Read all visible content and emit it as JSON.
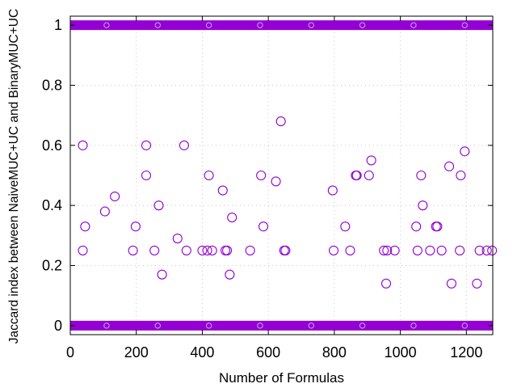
{
  "chart_data": {
    "type": "scatter",
    "title": "",
    "xlabel": "Number of Formulas",
    "ylabel": "Jaccard index between NaiveMUC+UC and BinaryMUC+UC",
    "xlim": [
      0,
      1280
    ],
    "ylim": [
      -0.03,
      1.03
    ],
    "x_ticks": [
      0,
      200,
      400,
      600,
      800,
      1000,
      1200
    ],
    "y_ticks": [
      0,
      0.2,
      0.4,
      0.6,
      0.8,
      1
    ],
    "x_tick_labels": [
      "0",
      "200",
      "400",
      "600",
      "800",
      "1000",
      "1200"
    ],
    "y_tick_labels": [
      "0",
      "0.2",
      "0.4",
      "0.6",
      "0.8",
      "1"
    ],
    "grid": true,
    "marker": "open-circle",
    "marker_color": "#9400d3",
    "dense_band_values": [
      0,
      1
    ],
    "dense_band_x_range": [
      0,
      1280
    ],
    "points": [
      {
        "x": 38,
        "y": 0.6
      },
      {
        "x": 38,
        "y": 0.25
      },
      {
        "x": 45,
        "y": 0.33
      },
      {
        "x": 105,
        "y": 0.38
      },
      {
        "x": 135,
        "y": 0.43
      },
      {
        "x": 190,
        "y": 0.25
      },
      {
        "x": 198,
        "y": 0.33
      },
      {
        "x": 230,
        "y": 0.6
      },
      {
        "x": 230,
        "y": 0.5
      },
      {
        "x": 255,
        "y": 0.25
      },
      {
        "x": 268,
        "y": 0.4
      },
      {
        "x": 278,
        "y": 0.17
      },
      {
        "x": 325,
        "y": 0.29
      },
      {
        "x": 345,
        "y": 0.6
      },
      {
        "x": 352,
        "y": 0.25
      },
      {
        "x": 400,
        "y": 0.25
      },
      {
        "x": 415,
        "y": 0.25
      },
      {
        "x": 420,
        "y": 0.5
      },
      {
        "x": 430,
        "y": 0.25
      },
      {
        "x": 462,
        "y": 0.45
      },
      {
        "x": 470,
        "y": 0.25
      },
      {
        "x": 475,
        "y": 0.25
      },
      {
        "x": 483,
        "y": 0.17
      },
      {
        "x": 490,
        "y": 0.36
      },
      {
        "x": 545,
        "y": 0.25
      },
      {
        "x": 578,
        "y": 0.5
      },
      {
        "x": 585,
        "y": 0.33
      },
      {
        "x": 623,
        "y": 0.48
      },
      {
        "x": 638,
        "y": 0.68
      },
      {
        "x": 648,
        "y": 0.25
      },
      {
        "x": 652,
        "y": 0.25
      },
      {
        "x": 795,
        "y": 0.45
      },
      {
        "x": 798,
        "y": 0.25
      },
      {
        "x": 833,
        "y": 0.33
      },
      {
        "x": 848,
        "y": 0.25
      },
      {
        "x": 865,
        "y": 0.5
      },
      {
        "x": 868,
        "y": 0.5
      },
      {
        "x": 905,
        "y": 0.5
      },
      {
        "x": 912,
        "y": 0.55
      },
      {
        "x": 950,
        "y": 0.25
      },
      {
        "x": 957,
        "y": 0.14
      },
      {
        "x": 960,
        "y": 0.25
      },
      {
        "x": 983,
        "y": 0.25
      },
      {
        "x": 1048,
        "y": 0.33
      },
      {
        "x": 1052,
        "y": 0.25
      },
      {
        "x": 1063,
        "y": 0.5
      },
      {
        "x": 1068,
        "y": 0.4
      },
      {
        "x": 1090,
        "y": 0.25
      },
      {
        "x": 1108,
        "y": 0.33
      },
      {
        "x": 1112,
        "y": 0.33
      },
      {
        "x": 1125,
        "y": 0.25
      },
      {
        "x": 1148,
        "y": 0.53
      },
      {
        "x": 1155,
        "y": 0.14
      },
      {
        "x": 1180,
        "y": 0.25
      },
      {
        "x": 1183,
        "y": 0.5
      },
      {
        "x": 1195,
        "y": 0.58
      },
      {
        "x": 1232,
        "y": 0.14
      },
      {
        "x": 1240,
        "y": 0.25
      },
      {
        "x": 1262,
        "y": 0.25
      },
      {
        "x": 1278,
        "y": 0.25
      }
    ]
  }
}
